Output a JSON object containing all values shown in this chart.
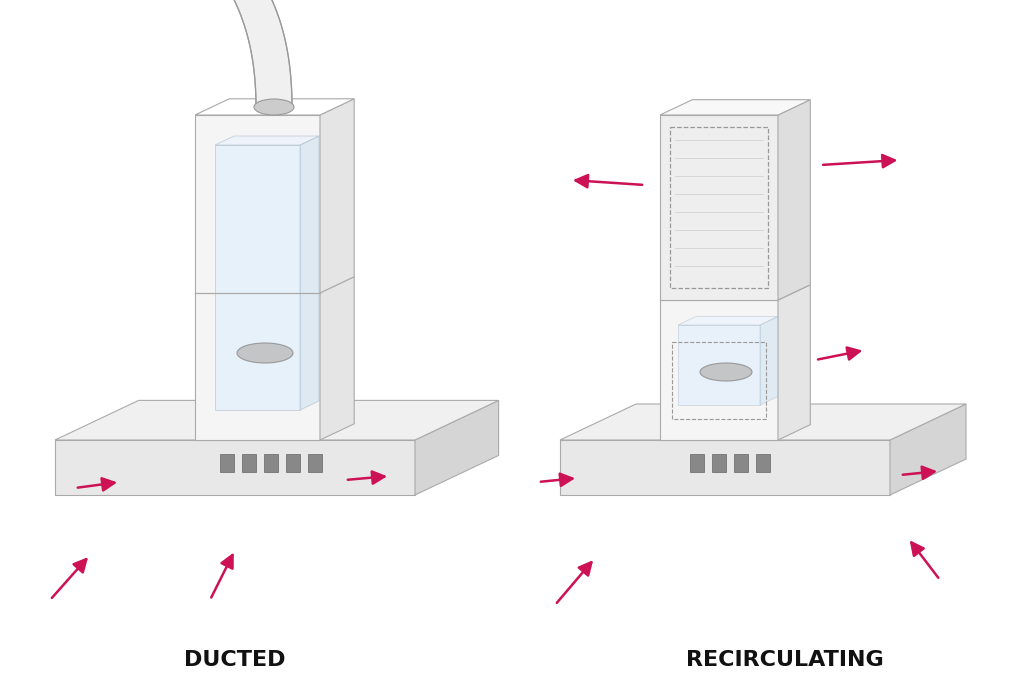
{
  "bg_color": "#ffffff",
  "arrow_color": "#cc1155",
  "label_ducted": "DUCTED",
  "label_recirc": "RECIRCULATING",
  "label_fontsize": 16,
  "label_fontweight": "bold",
  "fig_width": 10.32,
  "fig_height": 6.92
}
